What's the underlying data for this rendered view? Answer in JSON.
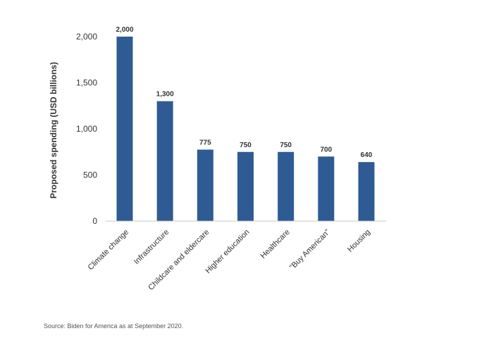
{
  "chart_data": {
    "type": "bar",
    "categories": [
      "Climate change",
      "Infrastructure",
      "Childcare and eldercare",
      "Higher education",
      "Healthcare",
      "\"Buy American\"",
      "Housing"
    ],
    "values": [
      2000,
      1300,
      775,
      750,
      750,
      700,
      640
    ],
    "data_labels": [
      "2,000",
      "1,300",
      "775",
      "750",
      "750",
      "700",
      "640"
    ],
    "title": "",
    "xlabel": "",
    "ylabel": "Proposed spending (USD billions)",
    "ylim": [
      0,
      2000
    ],
    "yticks": [
      0,
      500,
      1000,
      1500,
      2000
    ],
    "ytick_labels": [
      "0",
      "500",
      "1,000",
      "1,500",
      "2,000"
    ],
    "grid": false,
    "bar_color": "#2e5b94"
  },
  "source": "Source: Biden for America as at September 2020."
}
